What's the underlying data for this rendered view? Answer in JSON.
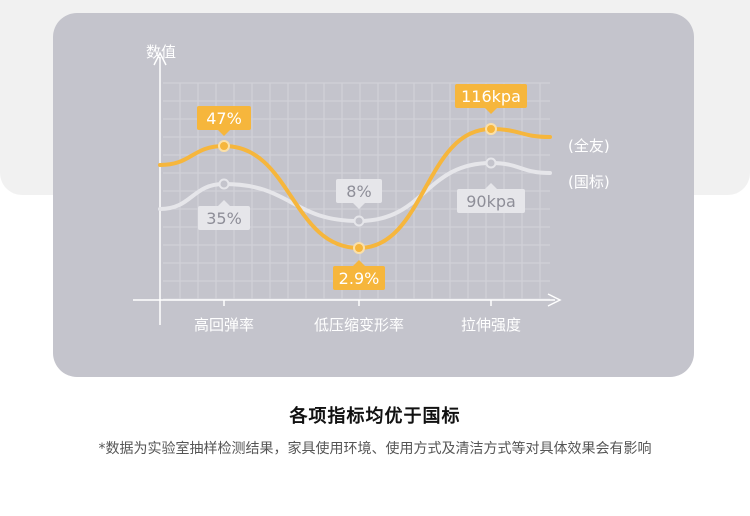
{
  "chart_data": {
    "type": "line",
    "ylabel": "数值",
    "categories": [
      "高回弹率",
      "低压缩变形率",
      "拉伸强度"
    ],
    "series": [
      {
        "name": "(全友)",
        "values": [
          "47%",
          "2.9%",
          "116kpa"
        ],
        "color": "#f6b63c"
      },
      {
        "name": "(国标)",
        "values": [
          "35%",
          "8%",
          "90kpa"
        ],
        "color": "#e6e6ea"
      }
    ],
    "grid": true
  },
  "headline": "各项指标均优于国标",
  "footnote": "*数据为实验室抽样检测结果，家具使用环境、使用方式及清洁方式等对具体效果会有影响"
}
